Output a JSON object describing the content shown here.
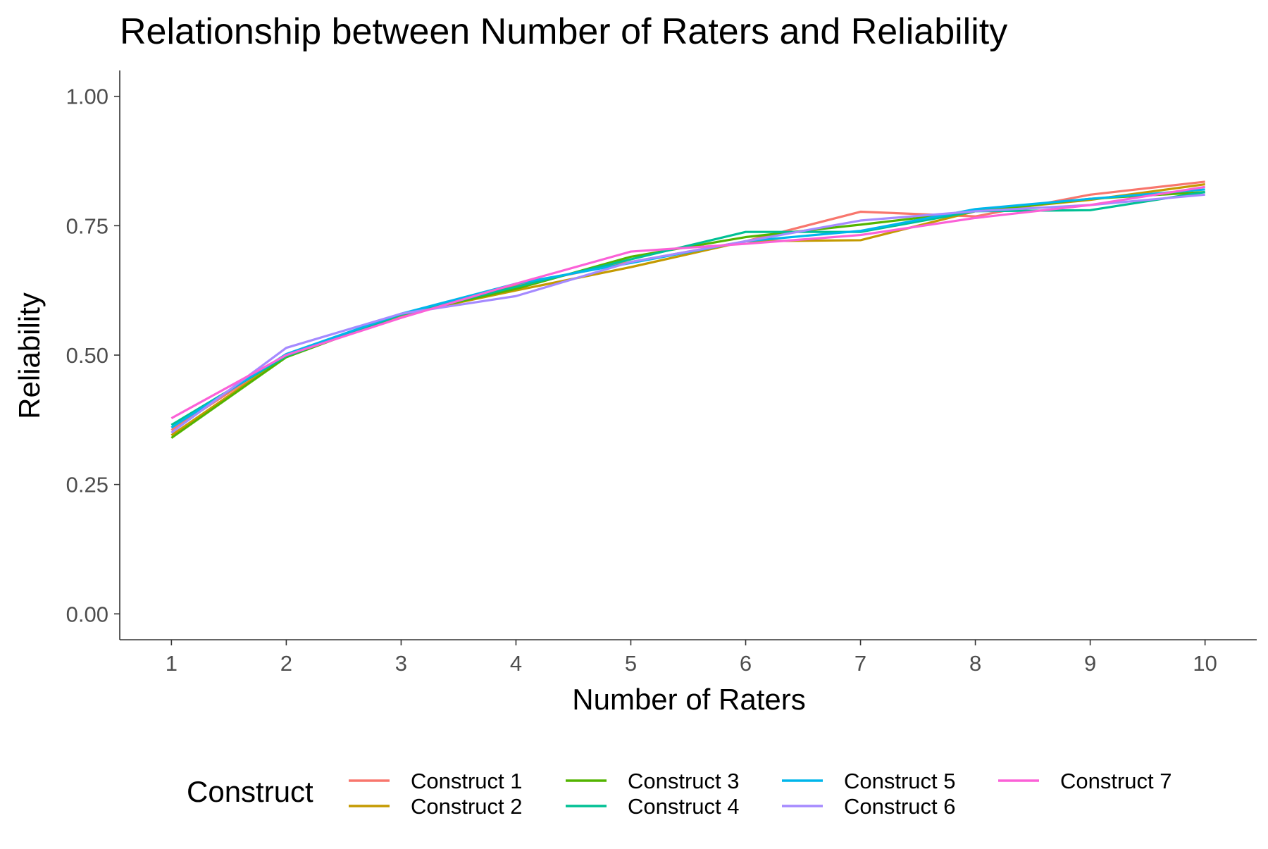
{
  "chart_data": {
    "type": "line",
    "title": "Relationship between Number of Raters and Reliability",
    "xlabel": "Number of Raters",
    "ylabel": "Reliability",
    "x": [
      1,
      2,
      3,
      4,
      5,
      6,
      7,
      8,
      9,
      10
    ],
    "xlim": [
      0.55,
      10.45
    ],
    "ylim": [
      -0.05,
      1.05
    ],
    "x_ticks": [
      "1",
      "2",
      "3",
      "4",
      "5",
      "6",
      "7",
      "8",
      "9",
      "10"
    ],
    "y_ticks": [
      {
        "value": 0,
        "label": "0.00"
      },
      {
        "value": 0.25,
        "label": "0.25"
      },
      {
        "value": 0.5,
        "label": "0.50"
      },
      {
        "value": 0.75,
        "label": "0.75"
      },
      {
        "value": 1,
        "label": "1.00"
      }
    ],
    "grid": false,
    "legend": {
      "title": "Construct",
      "position": "bottom"
    },
    "series": [
      {
        "name": "Construct 1",
        "color": "#F8766D",
        "values": [
          0.355,
          0.5,
          0.575,
          0.635,
          0.68,
          0.72,
          0.777,
          0.768,
          0.81,
          0.835
        ]
      },
      {
        "name": "Construct 2",
        "color": "#C49A00",
        "values": [
          0.345,
          0.498,
          0.578,
          0.625,
          0.67,
          0.72,
          0.722,
          0.778,
          0.8,
          0.83
        ]
      },
      {
        "name": "Construct 3",
        "color": "#53B400",
        "values": [
          0.34,
          0.496,
          0.578,
          0.628,
          0.69,
          0.728,
          0.752,
          0.778,
          0.802,
          0.815
        ]
      },
      {
        "name": "Construct 4",
        "color": "#00C094",
        "values": [
          0.365,
          0.498,
          0.578,
          0.632,
          0.685,
          0.738,
          0.738,
          0.778,
          0.78,
          0.815
        ]
      },
      {
        "name": "Construct 5",
        "color": "#00B6EB",
        "values": [
          0.36,
          0.502,
          0.58,
          0.638,
          0.678,
          0.72,
          0.74,
          0.782,
          0.802,
          0.82
        ]
      },
      {
        "name": "Construct 6",
        "color": "#A58AFF",
        "values": [
          0.35,
          0.514,
          0.58,
          0.614,
          0.68,
          0.72,
          0.76,
          0.778,
          0.79,
          0.81
        ]
      },
      {
        "name": "Construct 7",
        "color": "#FB61D7",
        "values": [
          0.378,
          0.5,
          0.572,
          0.638,
          0.7,
          0.715,
          0.732,
          0.765,
          0.79,
          0.825
        ]
      }
    ]
  }
}
